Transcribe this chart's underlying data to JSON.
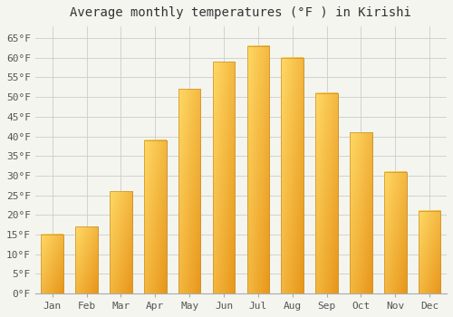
{
  "title": "Average monthly temperatures (°F ) in Kirishi",
  "months": [
    "Jan",
    "Feb",
    "Mar",
    "Apr",
    "May",
    "Jun",
    "Jul",
    "Aug",
    "Sep",
    "Oct",
    "Nov",
    "Dec"
  ],
  "values": [
    15,
    17,
    26,
    39,
    52,
    59,
    63,
    60,
    51,
    41,
    31,
    21
  ],
  "bar_color_bottom": "#F5A623",
  "bar_color_top": "#FFD966",
  "bar_edge_color": "#C8922A",
  "ylim": [
    0,
    68
  ],
  "yticks": [
    0,
    5,
    10,
    15,
    20,
    25,
    30,
    35,
    40,
    45,
    50,
    55,
    60,
    65
  ],
  "background_color": "#F5F5F0",
  "plot_bg_color": "#F5F5F0",
  "grid_color": "#CCCCCC",
  "title_fontsize": 10,
  "tick_fontsize": 8,
  "font_family": "monospace",
  "title_color": "#333333",
  "tick_color": "#555555"
}
